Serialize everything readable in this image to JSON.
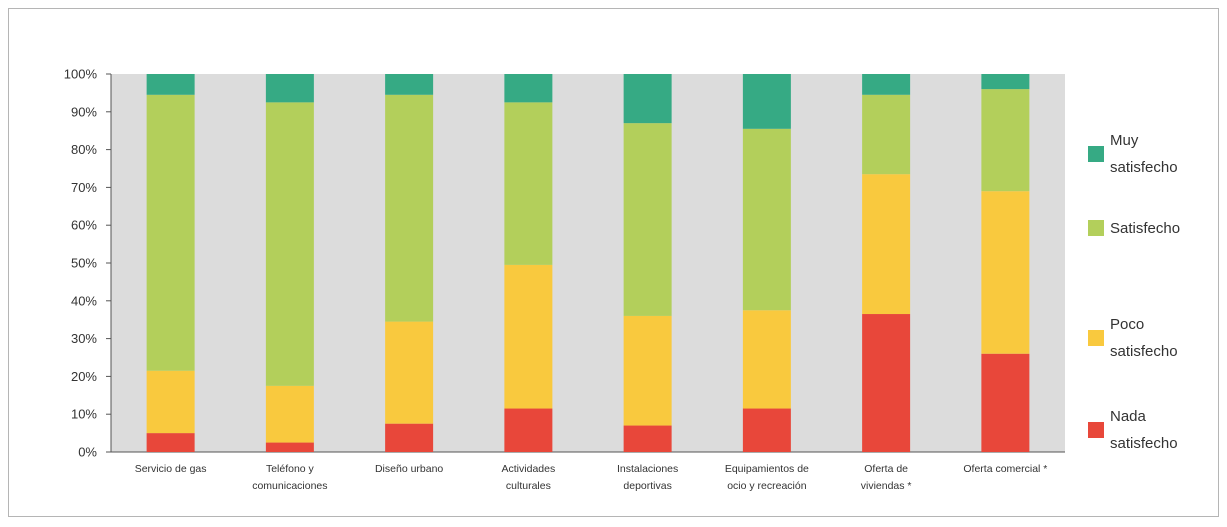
{
  "chart_data": {
    "type": "bar",
    "stacked": true,
    "percent": true,
    "ylim": [
      0,
      100
    ],
    "yticks": [
      "0%",
      "10%",
      "20%",
      "30%",
      "40%",
      "50%",
      "60%",
      "70%",
      "80%",
      "90%",
      "100%"
    ],
    "categories": [
      [
        "Servicio de gas"
      ],
      [
        "Teléfono y",
        "comunicaciones"
      ],
      [
        "Diseño urbano"
      ],
      [
        "Actividades",
        "culturales"
      ],
      [
        "Instalaciones",
        "deportivas"
      ],
      [
        "Equipamientos de",
        "ocio y recreación"
      ],
      [
        "Oferta de",
        "viviendas *"
      ],
      [
        "Oferta comercial *"
      ]
    ],
    "series": [
      {
        "name": "Nada satisfecho",
        "color": "#e8473a",
        "values": [
          5,
          2.5,
          7.5,
          11.5,
          7,
          11.5,
          36.5,
          26
        ]
      },
      {
        "name": "Poco satisfecho",
        "color": "#f9c93e",
        "values": [
          16.5,
          15,
          27,
          38,
          29,
          26,
          37,
          43
        ]
      },
      {
        "name": "Satisfecho",
        "color": "#b3cf5b",
        "values": [
          73,
          75,
          60,
          43,
          51,
          48,
          21,
          27
        ]
      },
      {
        "name": "Muy satisfecho",
        "color": "#36aa84",
        "values": [
          5.5,
          7.5,
          5.5,
          7.5,
          13,
          14.5,
          5.5,
          4
        ]
      }
    ],
    "legend": {
      "position": "right",
      "items": [
        {
          "lines": [
            "Muy",
            "satisfecho"
          ],
          "color": "#36aa84"
        },
        {
          "lines": [
            "Satisfecho"
          ],
          "color": "#b3cf5b"
        },
        {
          "lines": [
            "Poco",
            "satisfecho"
          ],
          "color": "#f9c93e"
        },
        {
          "lines": [
            "Nada",
            "satisfecho"
          ],
          "color": "#e8473a"
        }
      ]
    },
    "grid": false,
    "background": "#dcdcdc"
  }
}
